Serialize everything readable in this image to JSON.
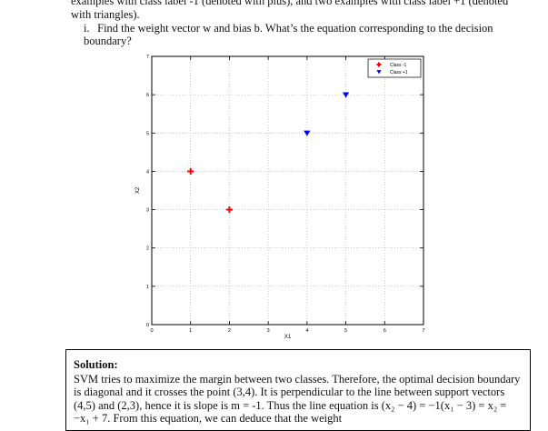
{
  "intro_text": "examples with class label -1 (denoted with plus), and two examples with class label +1 (denoted with triangles).",
  "question": {
    "number": "i.",
    "text": "Find the weight vector w and bias b. What’s the equation corresponding to the decision boundary?"
  },
  "chart_data": {
    "type": "scatter",
    "title": "",
    "xlabel": "X1",
    "ylabel": "X2",
    "xlim": [
      0,
      7
    ],
    "ylim": [
      0,
      7
    ],
    "xticks": [
      "0",
      "1",
      "2",
      "3",
      "4",
      "5",
      "6",
      "7"
    ],
    "yticks": [
      "0",
      "1",
      "2",
      "3",
      "4",
      "5",
      "6",
      "7"
    ],
    "grid": true,
    "legend_position": "top-right",
    "series": [
      {
        "name": "Class -1",
        "marker": "plus",
        "color": "#ff0000",
        "points": [
          [
            1,
            4
          ],
          [
            2,
            3
          ]
        ]
      },
      {
        "name": "Class +1",
        "marker": "triangle-down",
        "color": "#0000ff",
        "points": [
          [
            4,
            5
          ],
          [
            5,
            6
          ]
        ]
      }
    ]
  },
  "solution": {
    "title": "Solution:",
    "text": "SVM tries to maximize the margin between two classes. Therefore, the optimal decision boundary is diagonal and it crosses the point (3,4). It is perpendicular to the line between support vectors (4,5) and (2,3), hence it is slope is m = -1. Thus the line equation is (x₂ − 4) = −1(x₁ − 3) = x₂ = −x₁ + 7. From this equation, we can deduce that the weight"
  }
}
